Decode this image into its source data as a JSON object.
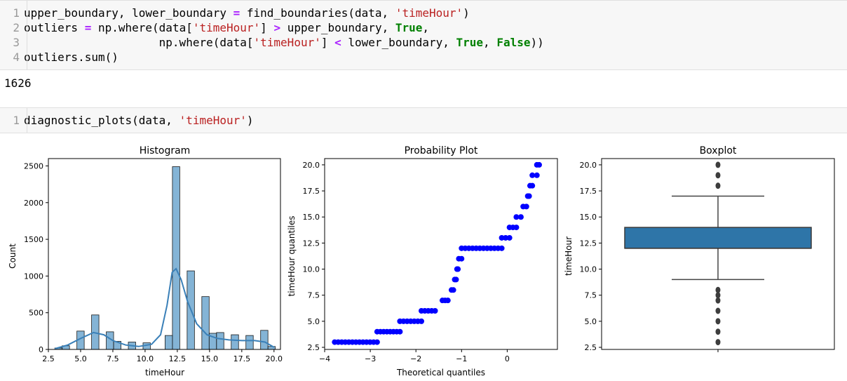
{
  "cell1": {
    "lines": [
      {
        "n": "1"
      },
      {
        "n": "2"
      },
      {
        "n": "3"
      },
      {
        "n": "4"
      }
    ],
    "t": {
      "l1a": "upper_boundary, lower_boundary ",
      "l1eq": "=",
      "l1b": " find_boundaries(data, ",
      "l1s": "'timeHour'",
      "l1c": ")",
      "l2a": "outliers ",
      "l2eq": "=",
      "l2b": " np.where(data[",
      "l2s": "'timeHour'",
      "l2c": "] ",
      "l2gt": ">",
      "l2d": " upper_boundary, ",
      "l2k": "True",
      "l2e": ",",
      "l3a": "                    np.where(data[",
      "l3s": "'timeHour'",
      "l3c": "] ",
      "l3lt": "<",
      "l3d": " lower_boundary, ",
      "l3k1": "True",
      "l3e": ", ",
      "l3k2": "False",
      "l3f": "))",
      "l4a": "outliers.sum()"
    }
  },
  "output1": "1626",
  "cell2": {
    "n": "1",
    "a": "diagnostic_plots(data, ",
    "s": "'timeHour'",
    "b": ")"
  },
  "colors": {
    "hist": "#1f77b4",
    "prob": "#0000ff",
    "box": "#2e75a8"
  },
  "chart_data": [
    {
      "type": "bar",
      "title": "Histogram",
      "xlabel": "timeHour",
      "ylabel": "Count",
      "xlim": [
        2.5,
        20.5
      ],
      "ylim": [
        0,
        2600
      ],
      "xticks": [
        "2.5",
        "5.0",
        "7.5",
        "10.0",
        "12.5",
        "15.0",
        "17.5",
        "20.0"
      ],
      "yticks": [
        "0",
        "500",
        "1000",
        "1500",
        "2000",
        "2500"
      ],
      "bins": [
        {
          "x0": 3.0,
          "x1": 3.57,
          "v": 20
        },
        {
          "x0": 3.57,
          "x1": 4.14,
          "v": 50
        },
        {
          "x0": 4.14,
          "x1": 4.71,
          "v": 0
        },
        {
          "x0": 4.71,
          "x1": 5.28,
          "v": 250
        },
        {
          "x0": 5.28,
          "x1": 5.85,
          "v": 0
        },
        {
          "x0": 5.85,
          "x1": 6.42,
          "v": 470
        },
        {
          "x0": 6.42,
          "x1": 6.99,
          "v": 0
        },
        {
          "x0": 6.99,
          "x1": 7.56,
          "v": 240
        },
        {
          "x0": 7.56,
          "x1": 8.13,
          "v": 110
        },
        {
          "x0": 8.13,
          "x1": 8.7,
          "v": 0
        },
        {
          "x0": 8.7,
          "x1": 9.27,
          "v": 100
        },
        {
          "x0": 9.27,
          "x1": 9.84,
          "v": 0
        },
        {
          "x0": 9.84,
          "x1": 10.41,
          "v": 90
        },
        {
          "x0": 10.41,
          "x1": 10.98,
          "v": 0
        },
        {
          "x0": 10.98,
          "x1": 11.55,
          "v": 0
        },
        {
          "x0": 11.55,
          "x1": 12.12,
          "v": 190
        },
        {
          "x0": 12.12,
          "x1": 12.69,
          "v": 2490
        },
        {
          "x0": 12.69,
          "x1": 13.26,
          "v": 0
        },
        {
          "x0": 13.26,
          "x1": 13.83,
          "v": 1070
        },
        {
          "x0": 13.83,
          "x1": 14.4,
          "v": 0
        },
        {
          "x0": 14.4,
          "x1": 14.97,
          "v": 720
        },
        {
          "x0": 14.97,
          "x1": 15.54,
          "v": 220
        },
        {
          "x0": 15.54,
          "x1": 16.11,
          "v": 230
        },
        {
          "x0": 16.11,
          "x1": 16.68,
          "v": 0
        },
        {
          "x0": 16.68,
          "x1": 17.25,
          "v": 200
        },
        {
          "x0": 17.25,
          "x1": 17.82,
          "v": 0
        },
        {
          "x0": 17.82,
          "x1": 18.39,
          "v": 190
        },
        {
          "x0": 18.39,
          "x1": 18.96,
          "v": 0
        },
        {
          "x0": 18.96,
          "x1": 19.53,
          "v": 260
        },
        {
          "x0": 19.53,
          "x1": 20.1,
          "v": 40
        }
      ],
      "kde": [
        [
          3,
          10
        ],
        [
          4,
          60
        ],
        [
          5,
          150
        ],
        [
          6,
          230
        ],
        [
          6.8,
          200
        ],
        [
          7.5,
          120
        ],
        [
          8.5,
          60
        ],
        [
          9.5,
          40
        ],
        [
          10.5,
          70
        ],
        [
          11.2,
          200
        ],
        [
          11.7,
          600
        ],
        [
          12.1,
          1050
        ],
        [
          12.4,
          1100
        ],
        [
          12.8,
          950
        ],
        [
          13.3,
          650
        ],
        [
          14,
          350
        ],
        [
          14.8,
          200
        ],
        [
          15.6,
          150
        ],
        [
          16.5,
          130
        ],
        [
          17.5,
          120
        ],
        [
          18.5,
          120
        ],
        [
          19.3,
          100
        ],
        [
          20,
          30
        ]
      ]
    },
    {
      "type": "scatter",
      "title": "Probability Plot",
      "xlabel": "Theoretical quantiles",
      "ylabel": "timeHour quantiles",
      "xlim": [
        -4,
        1.1
      ],
      "ylim": [
        2.3,
        20.6
      ],
      "xticks": [
        "−4",
        "−3",
        "−2",
        "−1",
        "0"
      ],
      "yticks": [
        "2.5",
        "5.0",
        "7.5",
        "10.0",
        "12.5",
        "15.0",
        "17.5",
        "20.0"
      ],
      "levels": [
        {
          "y": 3,
          "x0": -3.78,
          "x1": -2.85
        },
        {
          "y": 4,
          "x0": -2.85,
          "x1": -2.35
        },
        {
          "y": 5,
          "x0": -2.35,
          "x1": -1.88
        },
        {
          "y": 6,
          "x0": -1.88,
          "x1": -1.58
        },
        {
          "y": 7,
          "x0": -1.42,
          "x1": -1.3
        },
        {
          "y": 8,
          "x0": -1.22,
          "x1": -1.18
        },
        {
          "y": 9,
          "x0": -1.15,
          "x1": -1.12
        },
        {
          "y": 10,
          "x0": -1.1,
          "x1": -1.08
        },
        {
          "y": 11,
          "x0": -1.06,
          "x1": -1.0
        },
        {
          "y": 12,
          "x0": -1.0,
          "x1": -0.12
        },
        {
          "y": 13,
          "x0": -0.12,
          "x1": 0.05
        },
        {
          "y": 14,
          "x0": 0.05,
          "x1": 0.2
        },
        {
          "y": 15,
          "x0": 0.2,
          "x1": 0.3
        },
        {
          "y": 16,
          "x0": 0.35,
          "x1": 0.42
        },
        {
          "y": 17,
          "x0": 0.45,
          "x1": 0.48
        },
        {
          "y": 18,
          "x0": 0.5,
          "x1": 0.55
        },
        {
          "y": 19,
          "x0": 0.55,
          "x1": 0.65
        },
        {
          "y": 20,
          "x0": 0.65,
          "x1": 0.7
        }
      ]
    },
    {
      "type": "box",
      "title": "Boxplot",
      "ylabel": "timeHour",
      "ylim": [
        2.3,
        20.6
      ],
      "yticks": [
        "2.5",
        "5.0",
        "7.5",
        "10.0",
        "12.5",
        "15.0",
        "17.5",
        "20.0"
      ],
      "q1": 12,
      "median": 12,
      "q3": 14,
      "whisker_low": 9,
      "whisker_high": 17,
      "outliers": [
        3,
        4,
        5,
        6,
        7,
        7.5,
        8,
        18,
        19,
        20
      ]
    }
  ]
}
